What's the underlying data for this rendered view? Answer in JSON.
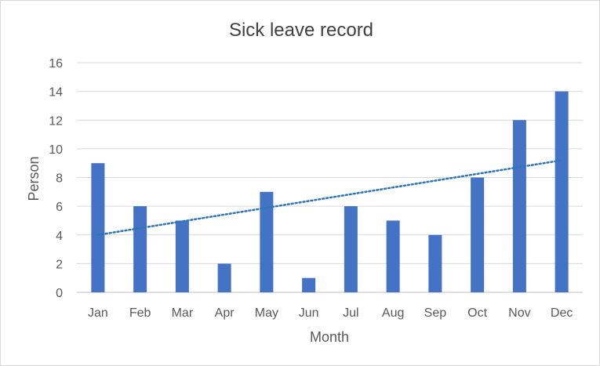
{
  "chart_data": {
    "type": "bar",
    "title": "Sick leave record",
    "xlabel": "Month",
    "ylabel": "Person",
    "categories": [
      "Jan",
      "Feb",
      "Mar",
      "Apr",
      "May",
      "Jun",
      "Jul",
      "Aug",
      "Sep",
      "Oct",
      "Nov",
      "Dec"
    ],
    "series": [
      {
        "values": [
          9,
          6,
          5,
          2,
          7,
          1,
          6,
          5,
          4,
          8,
          12,
          14
        ]
      }
    ],
    "trendline": {
      "type": "linear",
      "style": "dotted",
      "start": 4.0,
      "end": 9.2
    },
    "ylim": [
      0,
      16
    ],
    "yticks": [
      "0",
      "2",
      "4",
      "6",
      "8",
      "10",
      "12",
      "14",
      "16"
    ],
    "grid": true,
    "legend": "none",
    "colors": {
      "bar": "#4472c4",
      "trendline": "#2e75b6",
      "grid": "#d9d9d9",
      "axis": "#bfbfbf"
    }
  }
}
